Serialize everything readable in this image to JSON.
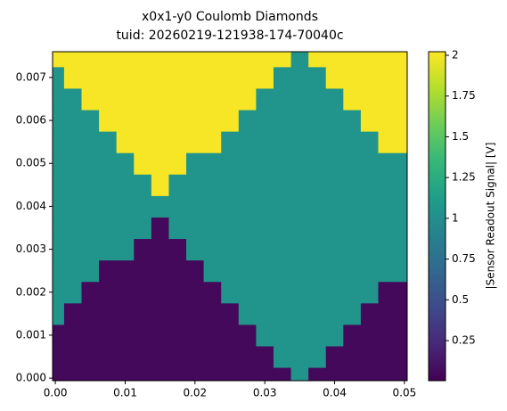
{
  "chart_data": {
    "type": "heatmap",
    "title": "x0x1-y0 Coulomb Diamonds",
    "subtitle": "tuid: 20260219-121938-174-70040c",
    "colorbar_label": "|Sensor Readout Signal| [V]",
    "colormap": "viridis",
    "x": [
      0,
      0.0025,
      0.005,
      0.0075,
      0.01,
      0.0125,
      0.015,
      0.0175,
      0.02,
      0.0225,
      0.025,
      0.0275,
      0.03,
      0.0325,
      0.035,
      0.0375,
      0.04,
      0.0425,
      0.045,
      0.0475,
      0.05
    ],
    "y": [
      0,
      0.0005,
      0.001,
      0.0015,
      0.002,
      0.0025,
      0.003,
      0.0035,
      0.004,
      0.0045,
      0.005,
      0.0055,
      0.006,
      0.0065,
      0.007,
      0.0075
    ],
    "z": [
      [
        0.05,
        0.05,
        0.05,
        0.05,
        0.05,
        0.05,
        0.05,
        0.05,
        0.05,
        0.05,
        0.05,
        0.05,
        0.05,
        0.05,
        1.05,
        0.05,
        0.05,
        0.05,
        0.05,
        0.05,
        0.05
      ],
      [
        0.05,
        0.05,
        0.05,
        0.05,
        0.05,
        0.05,
        0.05,
        0.05,
        0.05,
        0.05,
        0.05,
        0.05,
        0.05,
        1.05,
        1.05,
        1.05,
        0.05,
        0.05,
        0.05,
        0.05,
        0.05
      ],
      [
        0.05,
        0.05,
        0.05,
        0.05,
        0.05,
        0.05,
        0.05,
        0.05,
        0.05,
        0.05,
        0.05,
        0.05,
        1.05,
        1.05,
        1.05,
        1.05,
        1.05,
        0.05,
        0.05,
        0.05,
        0.05
      ],
      [
        1.05,
        0.05,
        0.05,
        0.05,
        0.05,
        0.05,
        0.05,
        0.05,
        0.05,
        0.05,
        0.05,
        1.05,
        1.05,
        1.05,
        1.05,
        1.05,
        1.05,
        1.05,
        0.05,
        0.05,
        0.05
      ],
      [
        1.05,
        1.05,
        0.05,
        0.05,
        0.05,
        0.05,
        0.05,
        0.05,
        0.05,
        0.05,
        1.05,
        1.05,
        1.05,
        1.05,
        1.05,
        1.05,
        1.05,
        1.05,
        1.05,
        0.05,
        0.05
      ],
      [
        1.05,
        1.05,
        1.05,
        0.05,
        0.05,
        0.05,
        0.05,
        0.05,
        0.05,
        1.05,
        1.05,
        1.05,
        1.05,
        1.05,
        1.05,
        1.05,
        1.05,
        1.05,
        1.05,
        1.05,
        1.05
      ],
      [
        1.05,
        1.05,
        1.05,
        1.05,
        1.05,
        0.05,
        0.05,
        0.05,
        1.05,
        1.05,
        1.05,
        1.05,
        1.05,
        1.05,
        1.05,
        1.05,
        1.05,
        1.05,
        1.05,
        1.05,
        1.05
      ],
      [
        1.05,
        1.05,
        1.05,
        1.05,
        1.05,
        1.05,
        0.05,
        1.05,
        1.05,
        1.05,
        1.05,
        1.05,
        1.05,
        1.05,
        1.05,
        1.05,
        1.05,
        1.05,
        1.05,
        1.05,
        1.05
      ],
      [
        1.05,
        1.05,
        1.05,
        1.05,
        1.05,
        1.05,
        1.05,
        1.05,
        1.05,
        1.05,
        1.05,
        1.05,
        1.05,
        1.05,
        1.05,
        1.05,
        1.05,
        1.05,
        1.05,
        1.05,
        1.05
      ],
      [
        1.05,
        1.05,
        1.05,
        1.05,
        1.05,
        1.05,
        2,
        1.05,
        1.05,
        1.05,
        1.05,
        1.05,
        1.05,
        1.05,
        1.05,
        1.05,
        1.05,
        1.05,
        1.05,
        1.05,
        1.05
      ],
      [
        1.05,
        1.05,
        1.05,
        1.05,
        1.05,
        2,
        2,
        2,
        1.05,
        1.05,
        1.05,
        1.05,
        1.05,
        1.05,
        1.05,
        1.05,
        1.05,
        1.05,
        1.05,
        1.05,
        1.05
      ],
      [
        1.05,
        1.05,
        1.05,
        1.05,
        2,
        2,
        2,
        2,
        2,
        2,
        1.05,
        1.05,
        1.05,
        1.05,
        1.05,
        1.05,
        1.05,
        1.05,
        1.05,
        2,
        2
      ],
      [
        1.05,
        1.05,
        1.05,
        2,
        2,
        2,
        2,
        2,
        2,
        2,
        2,
        1.05,
        1.05,
        1.05,
        1.05,
        1.05,
        1.05,
        1.05,
        2,
        2,
        2
      ],
      [
        1.05,
        1.05,
        2,
        2,
        2,
        2,
        2,
        2,
        2,
        2,
        2,
        2,
        1.05,
        1.05,
        1.05,
        1.05,
        1.05,
        2,
        2,
        2,
        2
      ],
      [
        1.05,
        2,
        2,
        2,
        2,
        2,
        2,
        2,
        2,
        2,
        2,
        2,
        2,
        1.05,
        1.05,
        1.05,
        2,
        2,
        2,
        2,
        2
      ],
      [
        2,
        2,
        2,
        2,
        2,
        2,
        2,
        2,
        2,
        2,
        2,
        2,
        2,
        2,
        1.05,
        2,
        2,
        2,
        2,
        2,
        2
      ]
    ],
    "xlim": [
      -0.0004,
      0.0504
    ],
    "xticks": [
      {
        "value": 0,
        "label": "0.00"
      },
      0.01,
      0.02,
      0.03,
      0.04,
      0.05
    ],
    "ylim": [
      -6e-05,
      0.0076
    ],
    "yticks": [
      {
        "value": 0,
        "label": "0.000"
      },
      0.001,
      0.002,
      0.003,
      0.004,
      0.005,
      0.006,
      0.007
    ],
    "zlim": [
      0.004,
      2.022
    ],
    "zticks": [
      0.25,
      0.5,
      0.75,
      1,
      1.25,
      1.5,
      1.75,
      2
    ]
  }
}
